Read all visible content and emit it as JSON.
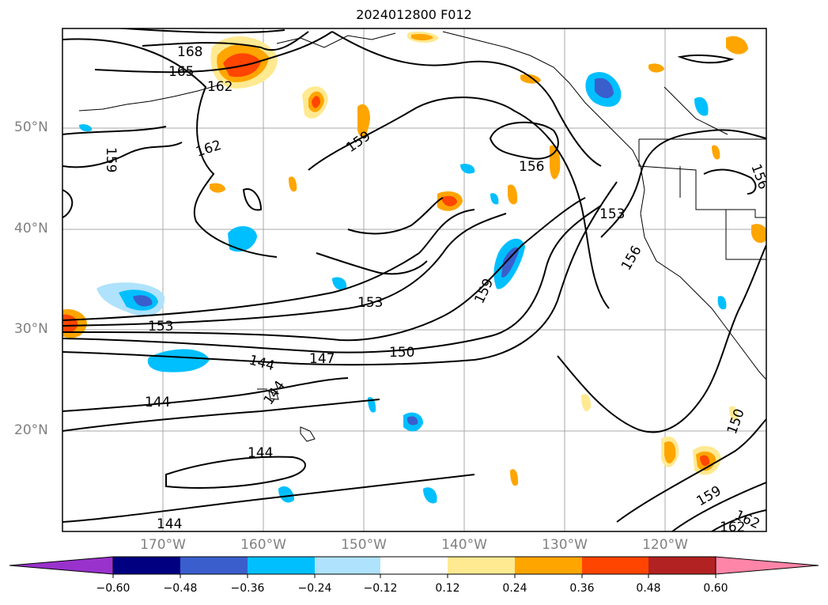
{
  "title": "2024012800 F012",
  "map": {
    "lat_labels": [
      "50°N",
      "40°N",
      "30°N",
      "20°N"
    ],
    "lon_labels": [
      "170°W",
      "160°W",
      "150°W",
      "140°W",
      "130°W",
      "120°W"
    ],
    "contour_labels": [
      "168",
      "165",
      "162",
      "162",
      "159",
      "159",
      "156",
      "156",
      "153",
      "153",
      "153",
      "159",
      "156",
      "147",
      "150",
      "144",
      "144",
      "144",
      "144",
      "144",
      "150",
      "159",
      "162",
      "162"
    ]
  },
  "colorbar": {
    "labels": [
      "−0.60",
      "−0.48",
      "−0.36",
      "−0.24",
      "−0.12",
      "0.12",
      "0.24",
      "0.36",
      "0.48",
      "0.60"
    ],
    "colors": [
      "#9932cc",
      "#000080",
      "#3a5fcd",
      "#00bfff",
      "#afe2fc",
      "#ffffff",
      "#ffe991",
      "#ffa500",
      "#ff4500",
      "#b22222",
      "#ff85a8"
    ]
  }
}
